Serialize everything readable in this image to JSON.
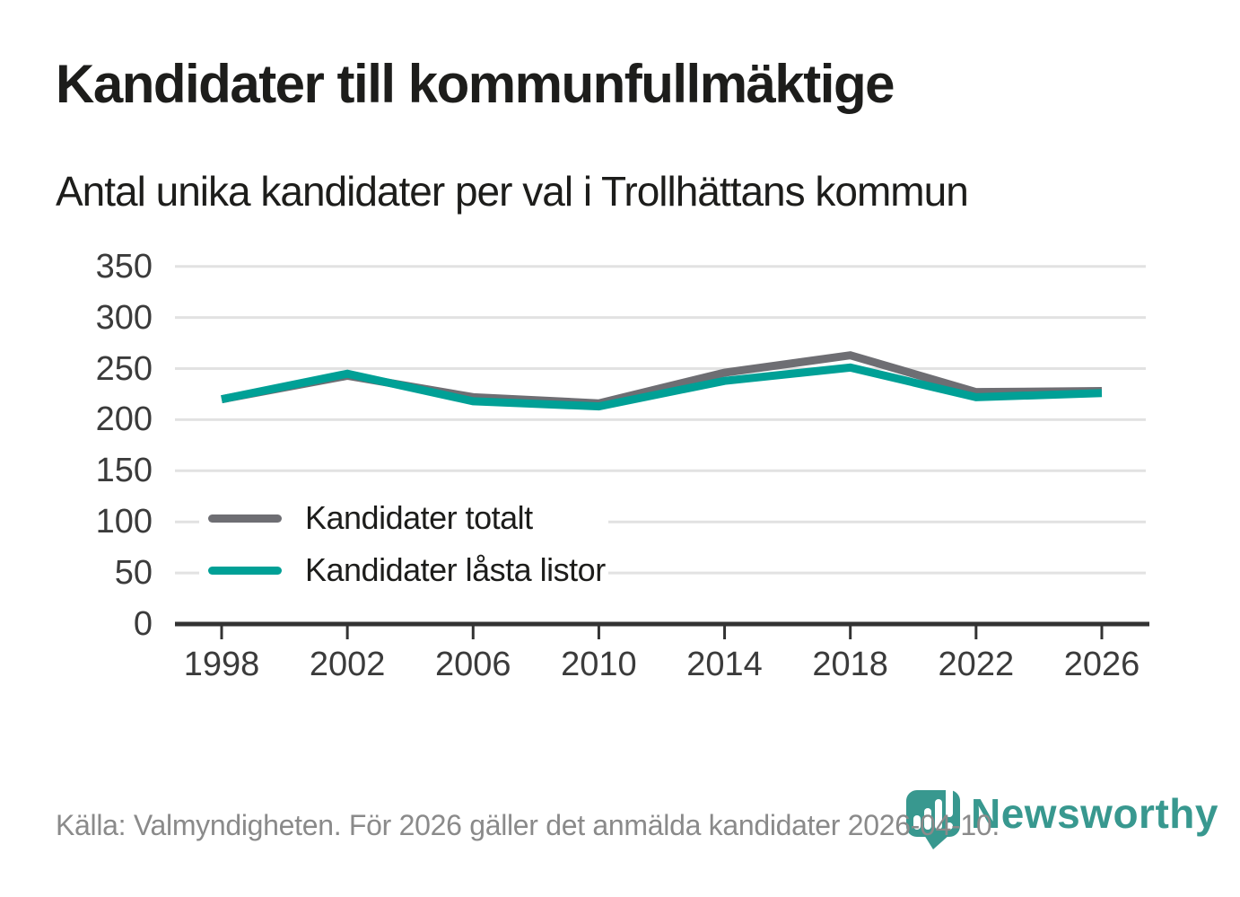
{
  "header": {
    "title": "Kandidater till kommunfullmäktige",
    "subtitle": "Antal unika kandidater per val i Trollhättans kommun"
  },
  "legend": {
    "items": [
      {
        "label": "Kandidater totalt",
        "color": "#6e6e73"
      },
      {
        "label": "Kandidater låsta listor",
        "color": "#00a096"
      }
    ]
  },
  "footer": {
    "source": "Källa: Valmyndigheten. För 2026 gäller det anmälda kandidater 2026-04-10.",
    "logo_text": "Newsworthy",
    "logo_color": "#38988f"
  },
  "chart_data": {
    "type": "line",
    "title": "Kandidater till kommunfullmäktige",
    "subtitle": "Antal unika kandidater per val i Trollhättans kommun",
    "x": [
      1998,
      2002,
      2006,
      2010,
      2014,
      2018,
      2022,
      2026
    ],
    "series": [
      {
        "name": "Kandidater totalt",
        "color": "#6e6e73",
        "values": [
          220,
          243,
          222,
          216,
          246,
          263,
          227,
          228
        ]
      },
      {
        "name": "Kandidater låsta listor",
        "color": "#00a096",
        "values": [
          220,
          245,
          218,
          213,
          238,
          251,
          222,
          226
        ]
      }
    ],
    "ylim": [
      0,
      350
    ],
    "yticks": [
      0,
      50,
      100,
      150,
      200,
      250,
      300,
      350
    ],
    "grid": true,
    "grid_color": "#e2e2e2",
    "axis_color": "#333333",
    "legend_position": "inside-lower-left",
    "xlabel": "",
    "ylabel": ""
  }
}
